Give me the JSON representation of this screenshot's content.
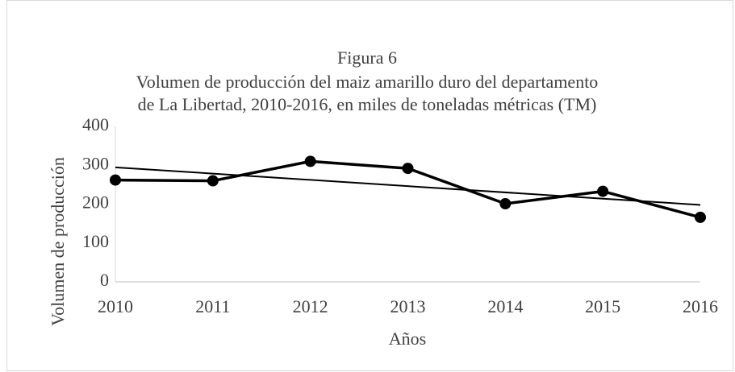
{
  "chart_data": {
    "type": "line",
    "title": [
      "Figura 6",
      "Volumen de producción del maiz amarillo duro del departamento",
      "de La Libertad, 2010-2016, en miles de toneladas métricas (TM)"
    ],
    "x_label": "Años",
    "y_label": "Volumen de producción",
    "categories": [
      "2010",
      "2011",
      "2012",
      "2013",
      "2014",
      "2015",
      "2016"
    ],
    "series": [
      {
        "color": "#000000",
        "values": [
          262,
          260,
          310,
          292,
          201,
          233,
          166
        ]
      }
    ],
    "trendline": "linear",
    "ylim": [
      0,
      400
    ],
    "yticks": [
      0,
      100,
      200,
      300,
      400
    ],
    "grid": false
  }
}
